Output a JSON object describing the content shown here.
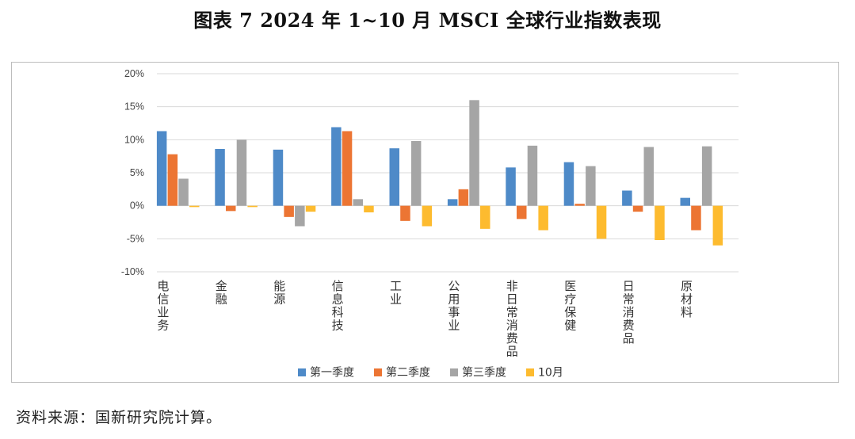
{
  "title": "图表 7  2024 年 1~10 月 MSCI 全球行业指数表现",
  "source": "资料来源：国新研究院计算。",
  "colors": {
    "q1": "#4e8ac8",
    "q2": "#ec7533",
    "q3": "#a5a5a5",
    "oct": "#fdbb2f",
    "grid": "#d9d9d9"
  },
  "chart_data": {
    "type": "bar",
    "categories": [
      "电信业务",
      "金融",
      "能源",
      "信息科技",
      "工业",
      "公用事业",
      "非日常消费品",
      "医疗保健",
      "日常消费品",
      "原材料"
    ],
    "series": [
      {
        "name": "第一季度",
        "values": [
          11.3,
          8.6,
          8.5,
          11.9,
          8.7,
          1.0,
          5.8,
          6.6,
          2.3,
          1.2
        ]
      },
      {
        "name": "第二季度",
        "values": [
          7.8,
          -0.8,
          -1.7,
          11.3,
          -2.3,
          2.5,
          -2.0,
          0.3,
          -0.9,
          -3.7
        ]
      },
      {
        "name": "第三季度",
        "values": [
          4.1,
          10.0,
          -3.1,
          1.0,
          9.8,
          16.0,
          9.1,
          6.0,
          8.9,
          9.0
        ]
      },
      {
        "name": "10月",
        "values": [
          -0.2,
          -0.2,
          -0.9,
          -1.0,
          -3.1,
          -3.5,
          -3.7,
          -5.0,
          -5.2,
          -6.0
        ]
      }
    ],
    "yticks": [
      "20%",
      "15%",
      "10%",
      "5%",
      "0%",
      "-5%",
      "-10%"
    ],
    "ylim": [
      -10,
      20
    ],
    "grid": true,
    "legend_position": "bottom"
  }
}
